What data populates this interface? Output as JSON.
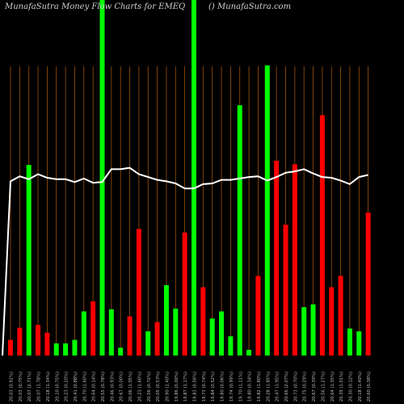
{
  "header": {
    "title": "MunafaSutra  Money Flow  Charts for EMEQ",
    "source": "() MunafaSutra.com"
  },
  "chart_data": {
    "type": "bar",
    "title": "MunafaSutra  Money Flow  Charts for EMEQ",
    "categories": [
      "20.03 (0.92%)",
      "20.03 (0.75%)",
      "20.07 (2.71%)",
      "20.07 (1.78%)",
      "20.18 (1.34%)",
      "20.10 (0.75%)",
      "20.23 (0.20%)",
      "20.41 (0.88%)",
      "20.70 (1.60%)",
      "20.64 (0.14%)",
      "20.55 (0.78%)",
      "20.46 (0.93%)",
      "20.67 (0.00%)",
      "20.06 (1.05%)",
      "20.23 (1.60%)",
      "20.56 (0.72%)",
      "20.05 (0.53%)",
      "20.90 (1.40%)",
      "19.86 (0.00%)",
      "19.87 (1.17%)",
      "19.83 (0.56%)",
      "19.73 (0.74%)",
      "19.84 (0.52%)",
      "19.80 (0.06%)",
      "19.74 (0.99%)",
      "19.70 (1.11%)",
      "19.80 (0.34%)",
      "19.82 (1.80%)",
      "20.28 (1.85%)",
      "20.47 (1.95%)",
      "20.66 (2.07%)",
      "20.73 (0.70%)",
      "20.75 (0.29%)",
      "20.67 (0.39%)",
      "20.56 (1.27%)",
      "20.64 (1.35%)",
      "20.39 (1.01%)",
      "20.30 (0.12%)",
      "20.18 (1.40%)",
      "20.60 (0.38%)"
    ],
    "colors": [
      "red",
      "red",
      "green",
      "red",
      "red",
      "green",
      "green",
      "green",
      "green",
      "red",
      "green",
      "green",
      "green",
      "red",
      "red",
      "green",
      "red",
      "green",
      "green",
      "red",
      "green",
      "red",
      "green",
      "green",
      "green",
      "green",
      "green",
      "red",
      "green",
      "red",
      "red",
      "red",
      "green",
      "green",
      "red",
      "red",
      "red",
      "green",
      "green",
      "red"
    ],
    "colors_fixed": [
      "red",
      "red",
      "green",
      "red",
      "red",
      "green",
      "green",
      "green",
      "green",
      "red",
      "green",
      "green",
      "green",
      "red",
      "red",
      "green",
      "red",
      "green",
      "green",
      "red",
      "green",
      "red",
      "green",
      "green",
      "green",
      "green",
      "green",
      "red",
      "green",
      "red",
      "red",
      "red",
      "green",
      "green",
      "red",
      "red",
      "red",
      "green",
      "green",
      "red"
    ],
    "values": [
      22,
      39,
      268,
      43,
      32,
      17,
      17,
      22,
      62,
      76,
      500,
      65,
      11,
      55,
      178,
      34,
      47,
      99,
      66,
      173,
      500,
      96,
      52,
      62,
      27,
      352,
      8,
      112,
      408,
      274,
      184,
      269,
      68,
      72,
      338,
      96,
      112,
      38,
      34,
      201
    ],
    "line": [
      245,
      252,
      248,
      255,
      250,
      248,
      248,
      244,
      249,
      243,
      244,
      262,
      262,
      264,
      255,
      251,
      247,
      245,
      242,
      235,
      235,
      241,
      242,
      247,
      247,
      249,
      251,
      252,
      246,
      251,
      257,
      259,
      262,
      256,
      251,
      250,
      246,
      241,
      251,
      254
    ],
    "ylim": [
      0,
      500
    ],
    "grid": true,
    "bar_colors": {
      "red": "#ff0000",
      "green": "#00ff00"
    },
    "line_color": "#ffffff",
    "grid_color": "#a0520a"
  }
}
